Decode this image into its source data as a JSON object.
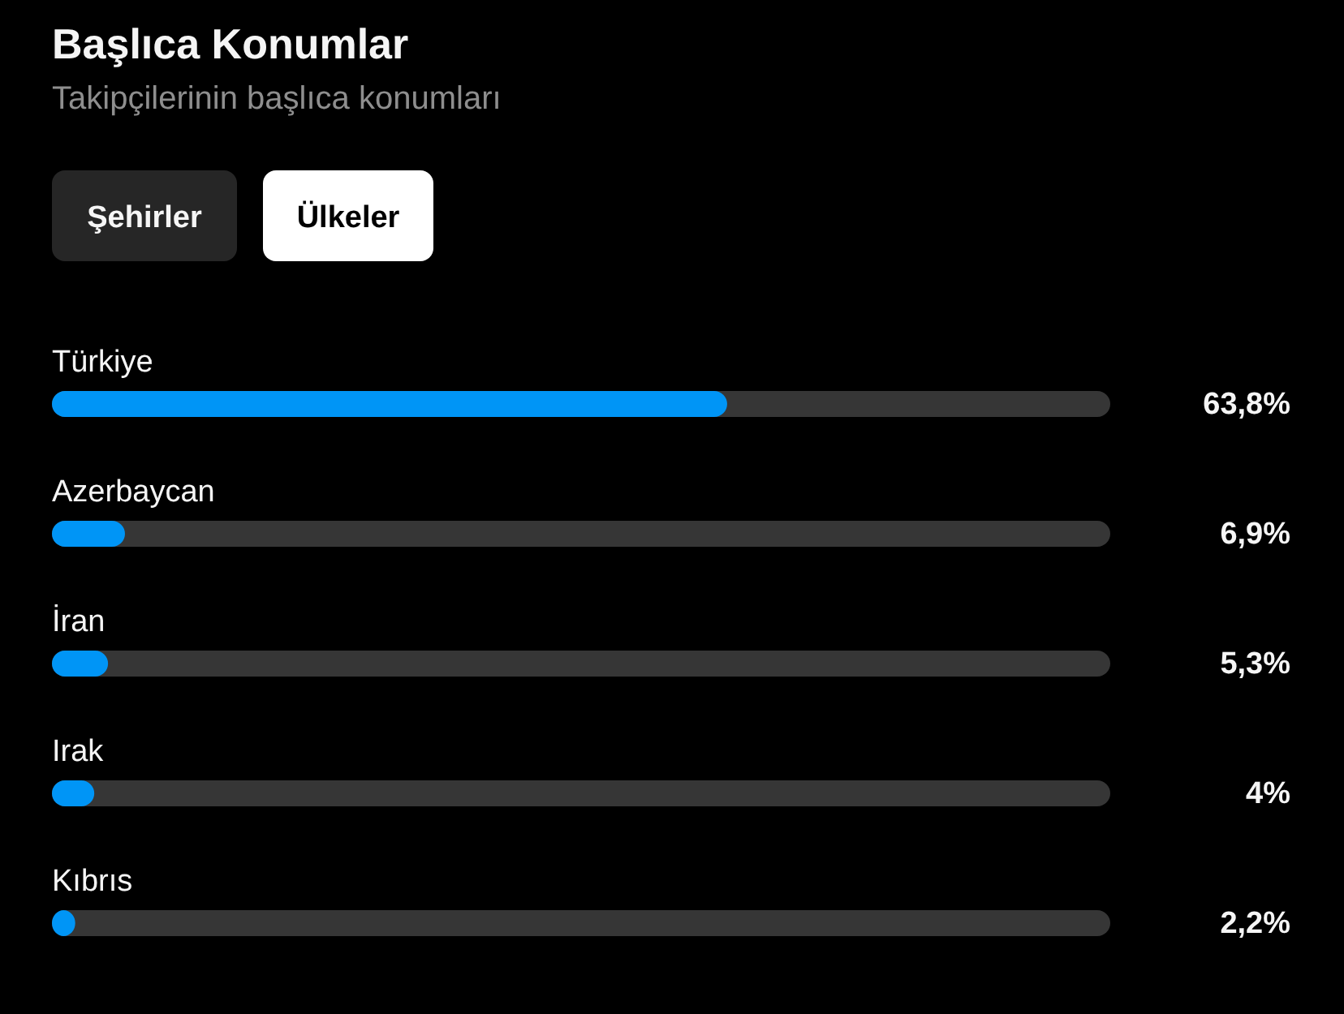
{
  "chart_data": {
    "type": "bar",
    "orientation": "horizontal",
    "title": "Başlıca Konumlar",
    "subtitle": "Takipçilerinin başlıca konumları",
    "annotations": [
      "Şehirler",
      "Ülkeler"
    ],
    "categories": [
      "Türkiye",
      "Azerbaycan",
      "İran",
      "Irak",
      "Kıbrıs"
    ],
    "values": [
      63.8,
      6.9,
      5.3,
      4,
      2.2
    ],
    "value_labels": [
      "63,8%",
      "6,9%",
      "5,3%",
      "4%",
      "2,2%"
    ],
    "color": "#0095f6",
    "xlim": [
      0,
      100
    ],
    "tick_labels": "y"
  }
}
